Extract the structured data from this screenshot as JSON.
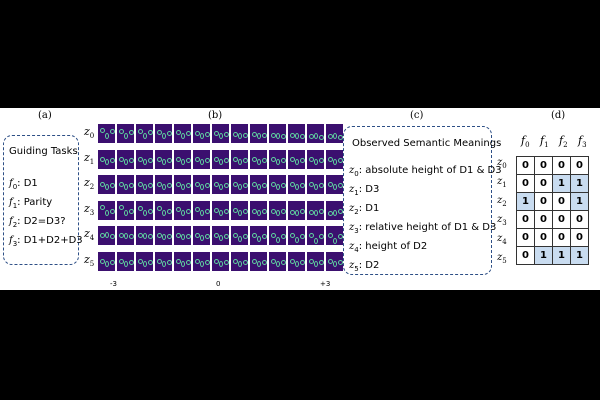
{
  "panel_labels": [
    "(a)",
    "(b)",
    "(c)",
    "(d)"
  ],
  "guiding": {
    "title": "Guiding Tasks",
    "items": [
      {
        "var": "f",
        "sub": "0",
        "text": ": D1"
      },
      {
        "var": "f",
        "sub": "1",
        "text": ": Parity"
      },
      {
        "var": "f",
        "sub": "2",
        "text": ": D2=D3?"
      },
      {
        "var": "f",
        "sub": "3",
        "text": ": D1+D2+D3"
      }
    ]
  },
  "traversal": {
    "rows": [
      {
        "var": "z",
        "sub": "0"
      },
      {
        "var": "z",
        "sub": "1"
      },
      {
        "var": "z",
        "sub": "2"
      },
      {
        "var": "z",
        "sub": "3"
      },
      {
        "var": "z",
        "sub": "4"
      },
      {
        "var": "z",
        "sub": "5"
      }
    ],
    "axis_labels": [
      "-3",
      "0",
      "+3"
    ]
  },
  "semantic": {
    "title": "Observed Semantic Meanings",
    "items": [
      {
        "var": "z",
        "sub": "0",
        "text": ": absolute height of D1 & D3"
      },
      {
        "var": "z",
        "sub": "1",
        "text": ": D3"
      },
      {
        "var": "z",
        "sub": "2",
        "text": ": D1"
      },
      {
        "var": "z",
        "sub": "3",
        "text": ": relative height of D1 & D3"
      },
      {
        "var": "z",
        "sub": "4",
        "text": ": height of D2"
      },
      {
        "var": "z",
        "sub": "5",
        "text": ": D2"
      }
    ]
  },
  "matrix": {
    "col_labels": [
      {
        "var": "f",
        "sub": "0"
      },
      {
        "var": "f",
        "sub": "1"
      },
      {
        "var": "f",
        "sub": "2"
      },
      {
        "var": "f",
        "sub": "3"
      }
    ],
    "row_labels": [
      {
        "var": "z",
        "sub": "0"
      },
      {
        "var": "z",
        "sub": "1"
      },
      {
        "var": "z",
        "sub": "2"
      },
      {
        "var": "z",
        "sub": "3"
      },
      {
        "var": "z",
        "sub": "4"
      },
      {
        "var": "z",
        "sub": "5"
      }
    ],
    "values": [
      [
        "0",
        "0",
        "0",
        "0"
      ],
      [
        "0",
        "0",
        "1",
        "1"
      ],
      [
        "1",
        "0",
        "0",
        "1"
      ],
      [
        "0",
        "0",
        "0",
        "0"
      ],
      [
        "0",
        "0",
        "0",
        "0"
      ],
      [
        "0",
        "1",
        "1",
        "1"
      ]
    ],
    "one_color": "#c9dcf0",
    "zero_color": "#ffffff"
  },
  "colors": {
    "box_border": "#2d4f86",
    "image_bg": "#3b0f6f",
    "digit": "#5fd3a0"
  }
}
